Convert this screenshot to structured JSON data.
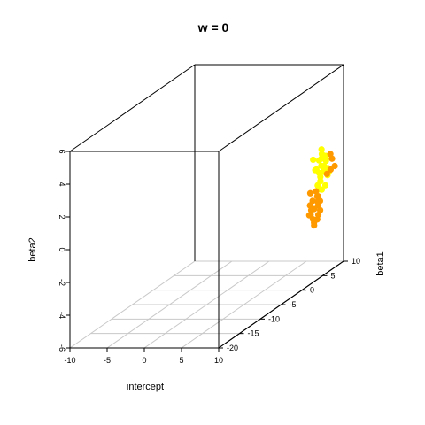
{
  "chart_data": {
    "type": "scatter",
    "title": "w =  0",
    "xlabel": "intercept",
    "ylabel": "beta2",
    "zlabel": "beta1",
    "xlim": [
      -10,
      10
    ],
    "ylim": [
      -6,
      6
    ],
    "zlim": [
      -20,
      10
    ],
    "x_ticks": [
      "-10",
      "-5",
      "0",
      "5",
      "10"
    ],
    "y_ticks": [
      "-6",
      "-4",
      "-2",
      "0",
      "2",
      "4",
      "6"
    ],
    "z_ticks": [
      "-20",
      "-15",
      "-10",
      "-5",
      "0",
      "5",
      "10"
    ],
    "grid": true,
    "series": [
      {
        "color": "#ffff00",
        "points": [
          [
            8.0,
            -0.5,
            8
          ],
          [
            8.4,
            -0.2,
            8.5
          ],
          [
            7.6,
            0.0,
            7.5
          ],
          [
            8.2,
            0.3,
            9
          ],
          [
            7.9,
            -0.8,
            8.2
          ],
          [
            8.6,
            0.2,
            7.8
          ],
          [
            7.4,
            -0.4,
            8.8
          ],
          [
            8.1,
            0.6,
            8.1
          ],
          [
            7.7,
            -1.0,
            7.9
          ],
          [
            8.3,
            -0.6,
            9.2
          ],
          [
            8.5,
            0.5,
            8.4
          ],
          [
            7.5,
            0.4,
            8.6
          ],
          [
            8.0,
            -1.2,
            7.6
          ],
          [
            8.7,
            -0.3,
            8.9
          ],
          [
            7.3,
            -0.1,
            8.3
          ],
          [
            8.2,
            0.9,
            8.0
          ],
          [
            7.8,
            -1.4,
            8.7
          ],
          [
            8.9,
            0.0,
            8.2
          ],
          [
            7.2,
            0.6,
            7.7
          ],
          [
            8.4,
            -1.1,
            8.5
          ],
          [
            7.6,
            1.0,
            9.0
          ],
          [
            8.8,
            0.8,
            7.9
          ],
          [
            7.9,
            0.1,
            8.4
          ],
          [
            8.1,
            -0.3,
            8.6
          ],
          [
            8.3,
            0.1,
            8.1
          ]
        ]
      },
      {
        "color": "#ff9900",
        "points": [
          [
            8.0,
            -2.2,
            6.5
          ],
          [
            8.3,
            -1.8,
            6.8
          ],
          [
            7.7,
            -2.5,
            6.2
          ],
          [
            8.2,
            -1.5,
            6.9
          ],
          [
            7.9,
            -2.8,
            6.4
          ],
          [
            8.5,
            -2.0,
            6.6
          ],
          [
            7.5,
            -2.3,
            6.7
          ],
          [
            8.1,
            -3.0,
            6.3
          ],
          [
            7.8,
            -1.7,
            6.5
          ],
          [
            8.4,
            -2.6,
            6.8
          ],
          [
            8.6,
            -1.4,
            6.4
          ],
          [
            7.4,
            -2.0,
            6.6
          ],
          [
            8.0,
            -3.2,
            6.5
          ],
          [
            8.7,
            -2.3,
            6.7
          ],
          [
            7.6,
            -1.2,
            6.3
          ],
          [
            8.2,
            -2.9,
            6.9
          ],
          [
            7.7,
            -1.9,
            6.1
          ],
          [
            8.8,
            -1.7,
            6.5
          ],
          [
            7.3,
            -2.6,
            6.6
          ],
          [
            8.3,
            -1.1,
            6.4
          ],
          [
            8.0,
            -0.6,
            9.6
          ],
          [
            8.6,
            -0.3,
            9.4
          ],
          [
            8.9,
            0.4,
            9.2
          ],
          [
            9.1,
            -0.1,
            9.5
          ],
          [
            8.4,
            0.6,
            9.7
          ]
        ]
      }
    ]
  }
}
